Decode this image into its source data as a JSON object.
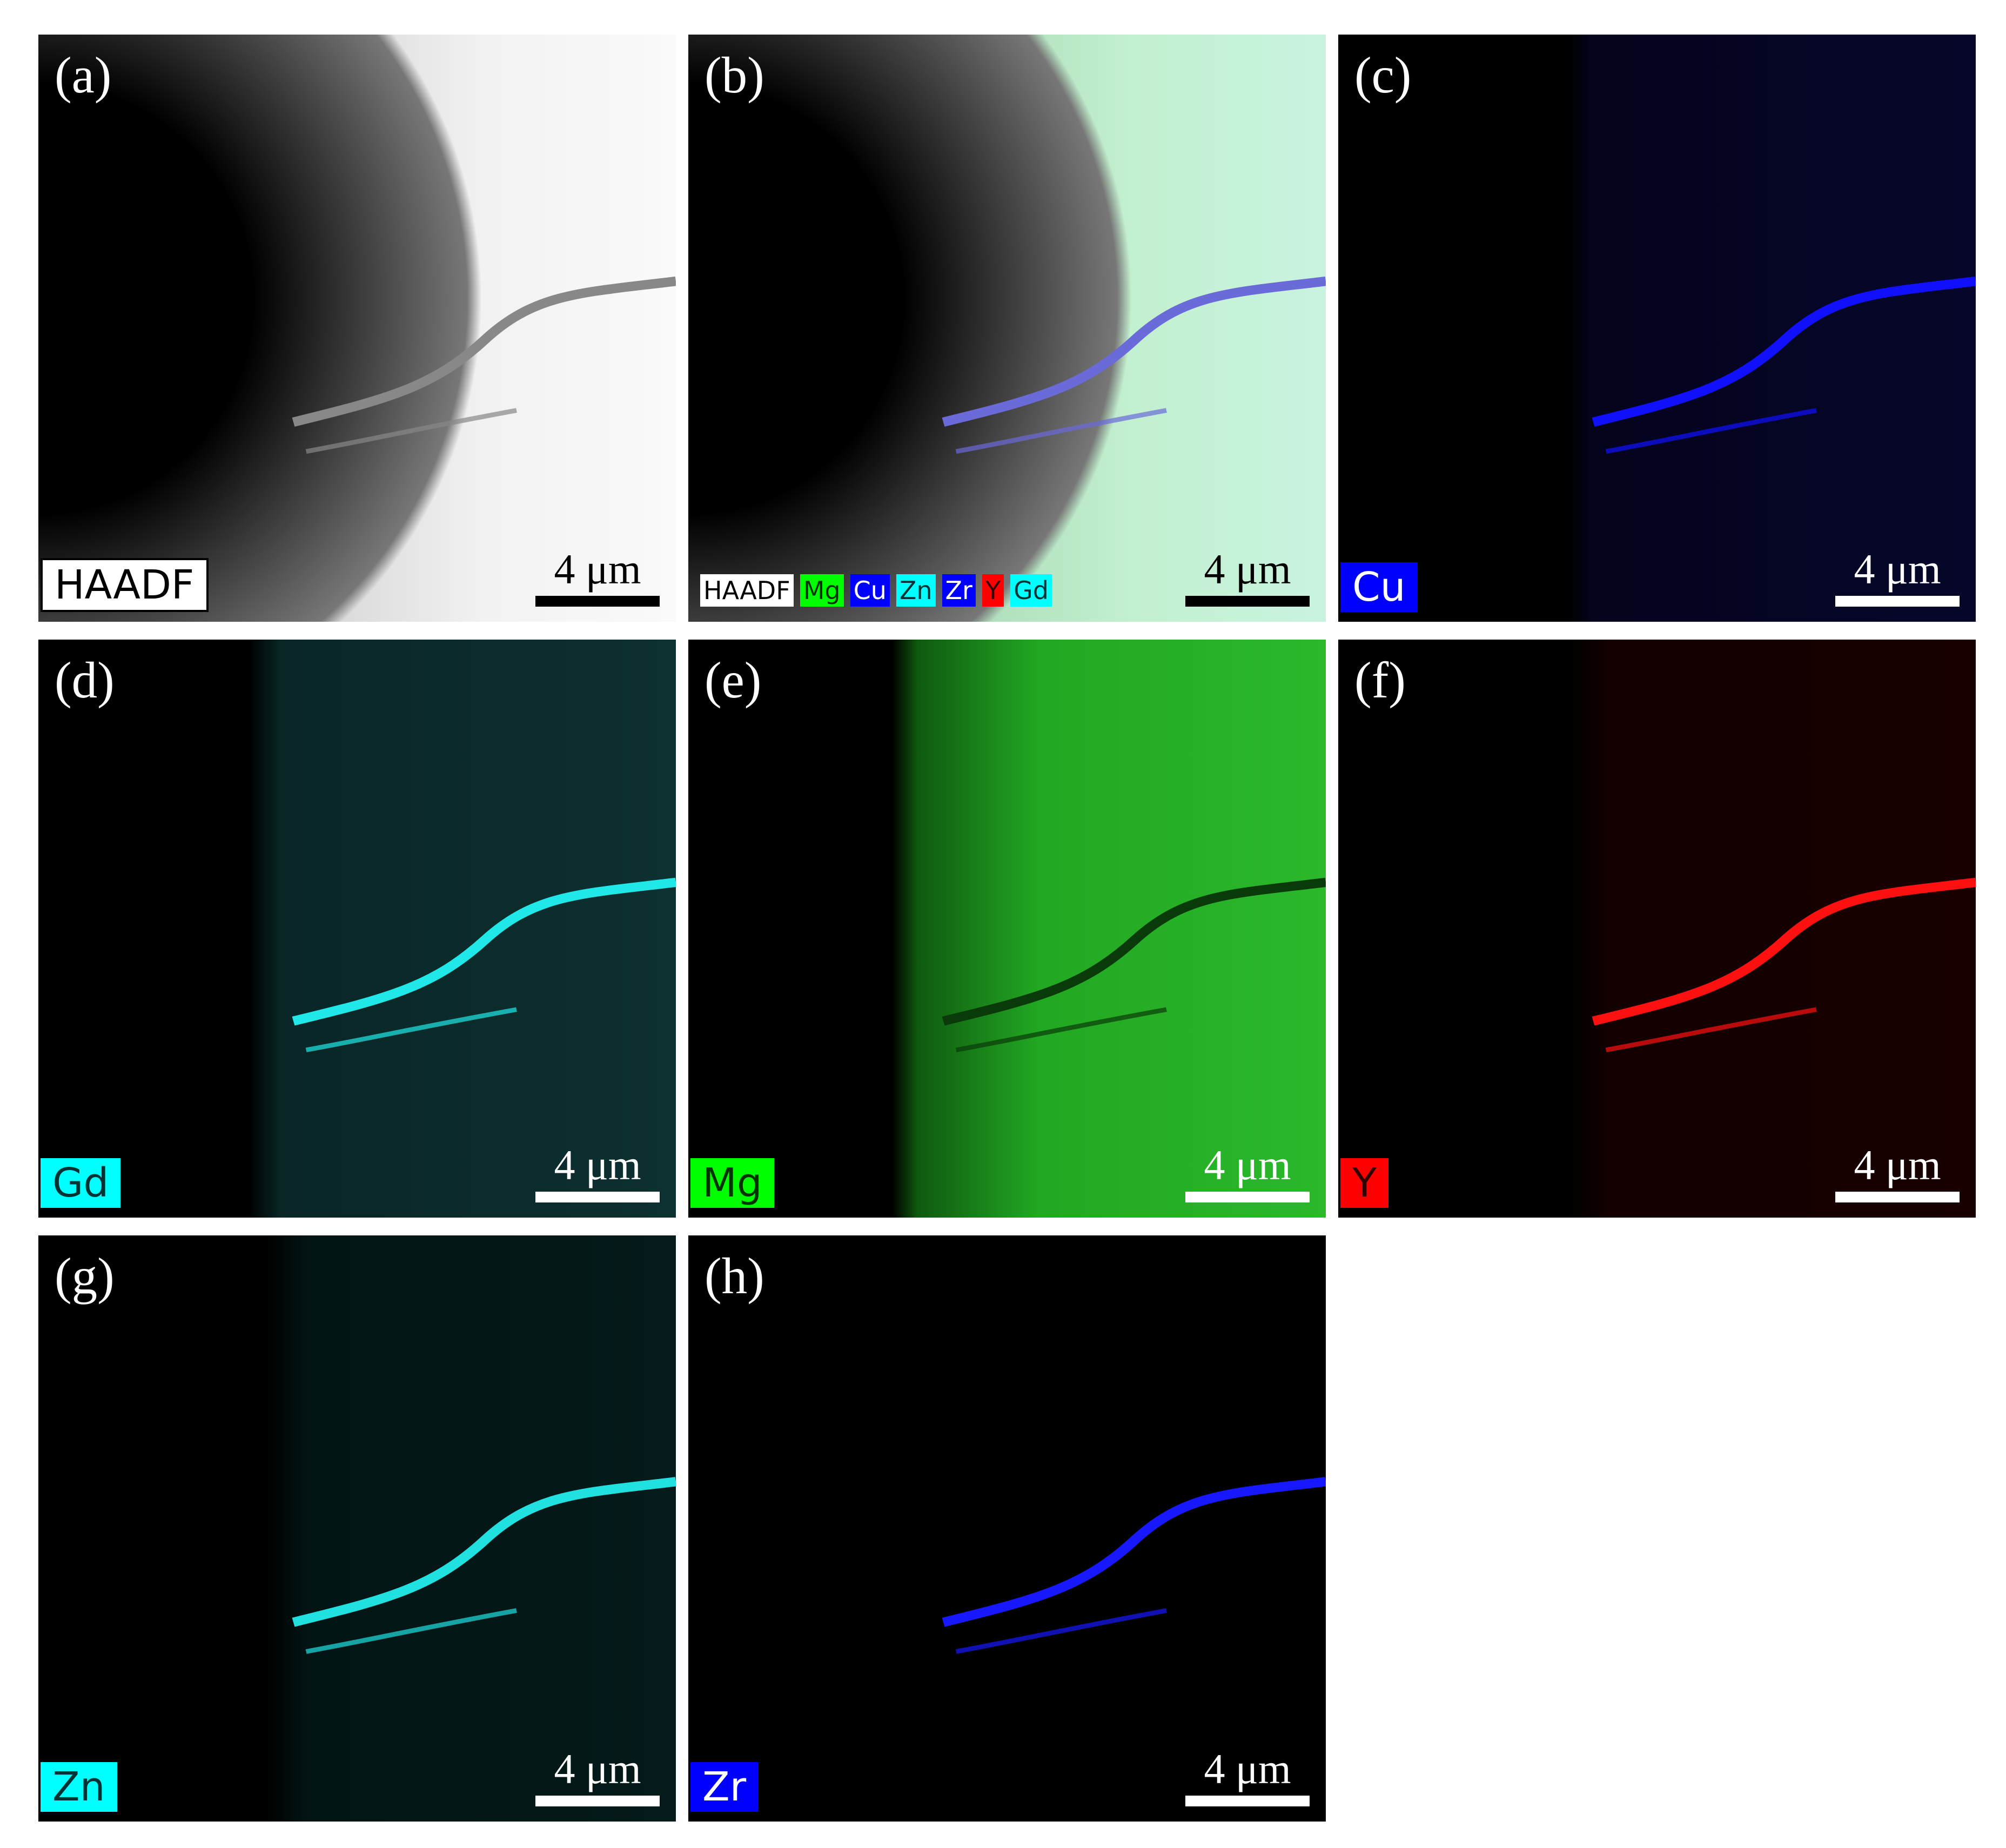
{
  "panels": [
    {
      "letter": "(a)",
      "tag": "HAADF",
      "scale_bar": "4 μm"
    },
    {
      "letter": "(b)",
      "legend": [
        "HAADF",
        "Mg",
        "Cu",
        "Zn",
        "Zr",
        "Y",
        "Gd"
      ],
      "scale_bar": "4 μm"
    },
    {
      "letter": "(c)",
      "tag": "Cu",
      "scale_bar": "4 μm"
    },
    {
      "letter": "(d)",
      "tag": "Gd",
      "scale_bar": "4 μm"
    },
    {
      "letter": "(e)",
      "tag": "Mg",
      "scale_bar": "4 μm"
    },
    {
      "letter": "(f)",
      "tag": "Y",
      "scale_bar": "4 μm"
    },
    {
      "letter": "(g)",
      "tag": "Zn",
      "scale_bar": "4 μm"
    },
    {
      "letter": "(h)",
      "tag": "Zr",
      "scale_bar": "4 μm"
    }
  ]
}
